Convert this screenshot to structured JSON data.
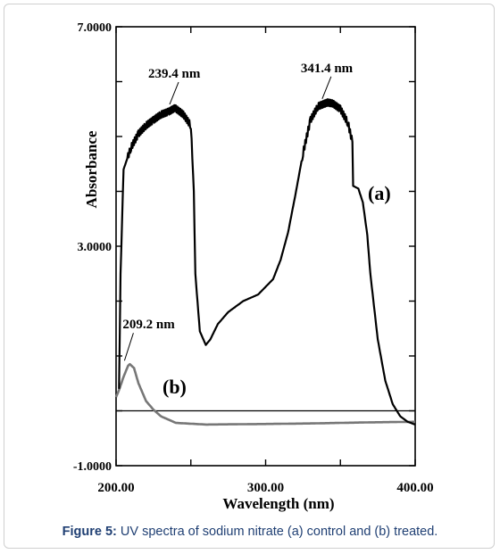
{
  "chart_data": {
    "type": "line",
    "title": "",
    "xlabel": "Wavelength (nm)",
    "ylabel": "Absorbance",
    "xlim": [
      200.0,
      400.0
    ],
    "ylim": [
      -1.0,
      7.0
    ],
    "x_ticks": [
      200.0,
      300.0,
      400.0
    ],
    "x_tick_labels": [
      "200.00",
      "300.00",
      "400.00"
    ],
    "y_ticks": [
      -1.0,
      3.0,
      7.0
    ],
    "y_tick_labels": [
      "-1.0000",
      "3.0000",
      "7.0000"
    ],
    "y_minor_ticks": [
      0.0,
      1.0,
      2.0,
      4.0,
      5.0,
      6.0
    ],
    "x_minor_ticks": [
      250.0,
      350.0
    ],
    "grid": false,
    "series": [
      {
        "name": "(a)",
        "color": "#000000",
        "x": [
          202,
          203,
          205,
          210,
          215,
          220,
          225,
          230,
          235,
          239.4,
          245,
          250,
          252,
          253,
          256,
          260,
          263,
          268,
          275,
          285,
          295,
          305,
          310,
          315,
          320,
          325,
          330,
          335,
          341.4,
          345,
          350,
          355,
          358,
          358.5,
          362,
          365,
          368,
          370,
          375,
          380,
          385,
          390,
          395,
          400
        ],
        "y": [
          0.4,
          2.5,
          4.4,
          4.8,
          5.05,
          5.2,
          5.3,
          5.4,
          5.45,
          5.52,
          5.4,
          5.2,
          4.0,
          2.5,
          1.45,
          1.2,
          1.3,
          1.58,
          1.8,
          2.0,
          2.12,
          2.4,
          2.75,
          3.25,
          3.95,
          4.7,
          5.3,
          5.55,
          5.62,
          5.6,
          5.5,
          5.25,
          4.9,
          4.1,
          4.05,
          3.8,
          3.2,
          2.5,
          1.3,
          0.55,
          0.12,
          -0.1,
          -0.2,
          -0.25
        ]
      },
      {
        "name": "(b)",
        "color": "#777777",
        "x": [
          200,
          202,
          205,
          208,
          209.2,
          212,
          215,
          220,
          225,
          230,
          240,
          260,
          300,
          330,
          350,
          370,
          400
        ],
        "y": [
          0.25,
          0.38,
          0.62,
          0.82,
          0.85,
          0.78,
          0.5,
          0.18,
          0.02,
          -0.1,
          -0.22,
          -0.25,
          -0.24,
          -0.23,
          -0.22,
          -0.21,
          -0.2
        ]
      }
    ],
    "baseline": 0.0,
    "annotations": [
      {
        "text": "239.4 nm",
        "x": 239.4,
        "y": 5.52
      },
      {
        "text": "341.4 nm",
        "x": 341.4,
        "y": 5.62
      },
      {
        "text": "209.2 nm",
        "x": 209.2,
        "y": 0.85
      }
    ],
    "series_labels": [
      "(a)",
      "(b)"
    ]
  },
  "caption": {
    "prefix": "Figure 5:",
    "text": " UV spectra of sodium nitrate (a) control and (b) treated."
  }
}
